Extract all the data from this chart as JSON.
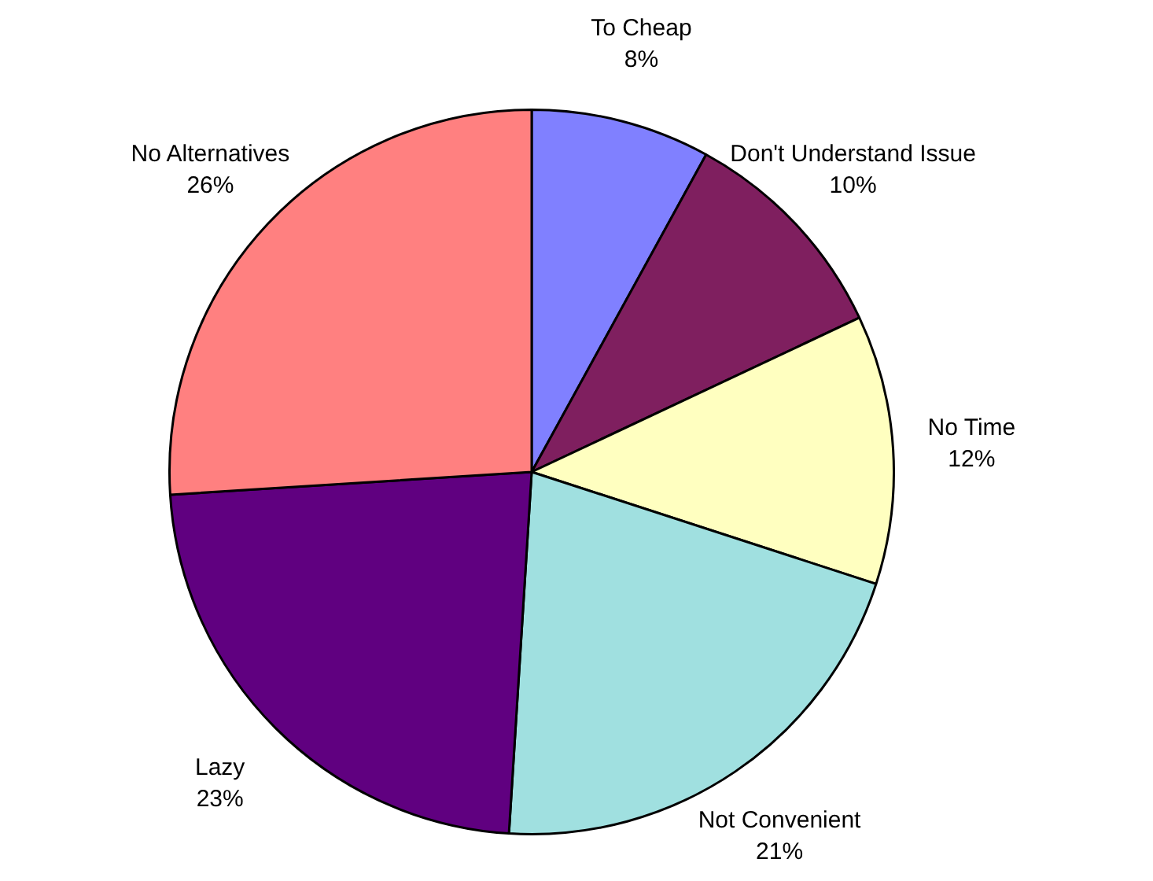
{
  "chart_data": {
    "type": "pie",
    "categories": [
      "To Cheap",
      "Don't Understand Issue",
      "No Time",
      "Not Convenient",
      "Lazy",
      "No Alternatives"
    ],
    "values": [
      8,
      10,
      12,
      21,
      23,
      26
    ],
    "value_labels": [
      "8%",
      "10%",
      "12%",
      "21%",
      "23%",
      "26%"
    ],
    "colors": [
      "#8080ff",
      "#7f1f5f",
      "#ffffc0",
      "#a0e0e0",
      "#600080",
      "#ff8080"
    ],
    "legend": false
  }
}
